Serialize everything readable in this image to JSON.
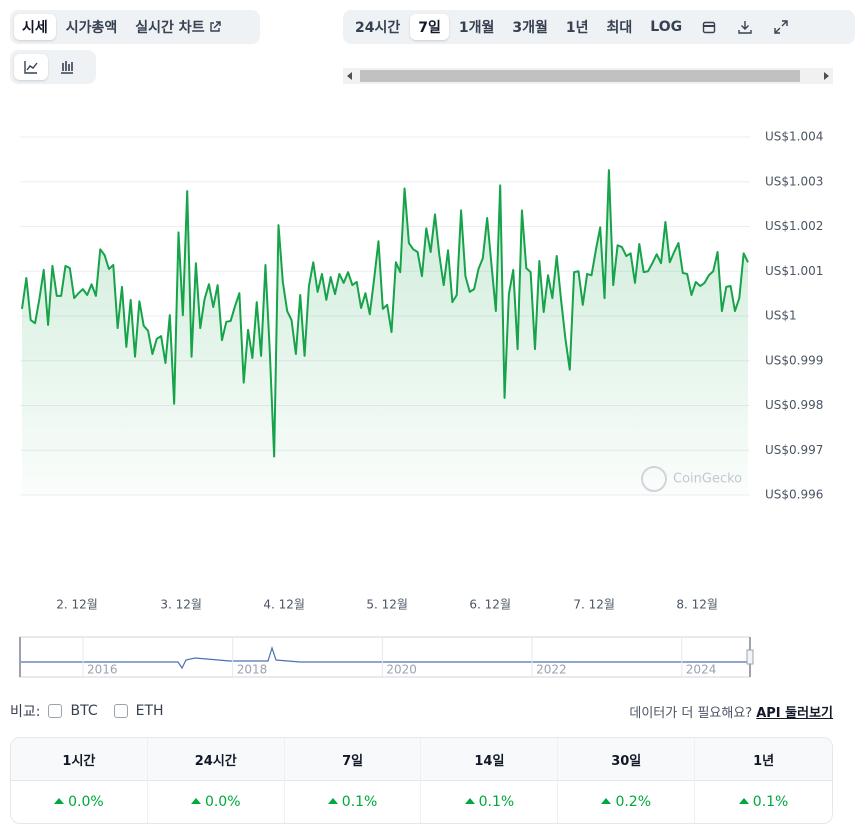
{
  "tabs": [
    "시세",
    "시가총액",
    "실시간 차트"
  ],
  "ranges": [
    "24시간",
    "7일",
    "1개월",
    "3개월",
    "1년",
    "최대",
    "LOG"
  ],
  "chart_data": {
    "type": "line",
    "color": "#16a34a",
    "watermark": "CoinGecko",
    "grid": true,
    "xlim": [
      0,
      167
    ],
    "xticks": [
      {
        "value": 12.65,
        "label": "2. 12월"
      },
      {
        "value": 36.6,
        "label": "3. 12월"
      },
      {
        "value": 60.3,
        "label": "4. 12월"
      },
      {
        "value": 84.0,
        "label": "5. 12월"
      },
      {
        "value": 107.7,
        "label": "6. 12월"
      },
      {
        "value": 131.6,
        "label": "7. 12월"
      },
      {
        "value": 155.3,
        "label": "8. 12월"
      }
    ],
    "ylim": [
      0.996,
      1.004
    ],
    "yticks": [
      {
        "value": 1.004,
        "label": "US$1.004"
      },
      {
        "value": 1.003,
        "label": "US$1.003"
      },
      {
        "value": 1.002,
        "label": "US$1.002"
      },
      {
        "value": 1.001,
        "label": "US$1.001"
      },
      {
        "value": 1,
        "label": "US$1"
      },
      {
        "value": 0.999,
        "label": "US$0.999"
      },
      {
        "value": 0.998,
        "label": "US$0.998"
      },
      {
        "value": 0.997,
        "label": "US$0.997"
      },
      {
        "value": 0.996,
        "label": "US$0.996"
      }
    ],
    "values": [
      1.00016,
      1.00085,
      0.99991,
      0.99984,
      1.00038,
      1.00103,
      0.9998,
      1.00112,
      1.00045,
      1.00045,
      1.00112,
      1.00107,
      1.0004,
      1.00051,
      1.0006,
      1.00047,
      1.00071,
      1.00045,
      1.00149,
      1.00136,
      1.00105,
      1.00114,
      0.99973,
      1.00065,
      0.99931,
      1.00036,
      0.99909,
      1.00033,
      0.99978,
      0.99967,
      0.99915,
      0.99949,
      0.99955,
      0.99895,
      1.00002,
      0.99804,
      1.00187,
      1.00002,
      1.00279,
      0.99909,
      1.00118,
      0.99973,
      1.00038,
      1.00071,
      1.0002,
      1.00069,
      0.99946,
      0.99987,
      0.99989,
      1.00022,
      1.00051,
      0.99851,
      0.99969,
      0.99906,
      1.00031,
      0.99911,
      1.00114,
      0.9992,
      0.99686,
      1.00203,
      1.00076,
      1.00011,
      0.99991,
      0.99915,
      1.00047,
      0.99911,
      1.00067,
      1.0012,
      1.00054,
      1.00094,
      1.00036,
      1.00087,
      1.00049,
      1.00094,
      1.00074,
      1.00098,
      1.00069,
      1.00076,
      1.00018,
      1.00051,
      1.00004,
      1.00083,
      1.00167,
      1.00016,
      1.00025,
      0.99964,
      1.0012,
      1.00098,
      1.00285,
      1.00163,
      1.00149,
      1.00143,
      1.00089,
      1.00196,
      1.00143,
      1.00227,
      1.00136,
      1.00069,
      1.00147,
      1.00031,
      1.00047,
      1.00236,
      1.00089,
      1.00054,
      1.0006,
      1.00105,
      1.00129,
      1.00219,
      1.00114,
      1.00011,
      1.00292,
      0.99817,
      1.00049,
      1.00103,
      0.99926,
      1.00236,
      1.00107,
      1.00098,
      0.99926,
      1.00123,
      1.00009,
      1.00091,
      1.0004,
      1.00134,
      1.00036,
      0.99949,
      0.9988,
      1.00098,
      1.001,
      1.00025,
      1.00094,
      1.00091,
      1.00147,
      1.00198,
      1.0004,
      1.00326,
      1.00069,
      1.00158,
      1.00154,
      1.00134,
      1.0014,
      1.00074,
      1.00161,
      1.00098,
      1.001,
      1.00118,
      1.00138,
      1.00118,
      1.0021,
      1.0012,
      1.00143,
      1.00163,
      1.00096,
      1.00094,
      1.00047,
      1.00076,
      1.00067,
      1.00074,
      1.00091,
      1.001,
      1.00143,
      1.00011,
      1.00065,
      1.00067,
      1.00011,
      1.0004,
      1.0014,
      1.0012
    ]
  },
  "navigator": {
    "labels": [
      "2016",
      "2018",
      "2020",
      "2022",
      "2024"
    ]
  },
  "compare": {
    "label": "비교:",
    "options": [
      "BTC",
      "ETH"
    ],
    "prompt": "데이터가 더 필요해요?",
    "link": "API 둘러보기"
  },
  "table": {
    "headers": [
      "1시간",
      "24시간",
      "7일",
      "14일",
      "30일",
      "1년"
    ],
    "rows": [
      [
        "0.0%",
        "0.0%",
        "0.1%",
        "0.1%",
        "0.2%",
        "0.1%"
      ]
    ]
  }
}
